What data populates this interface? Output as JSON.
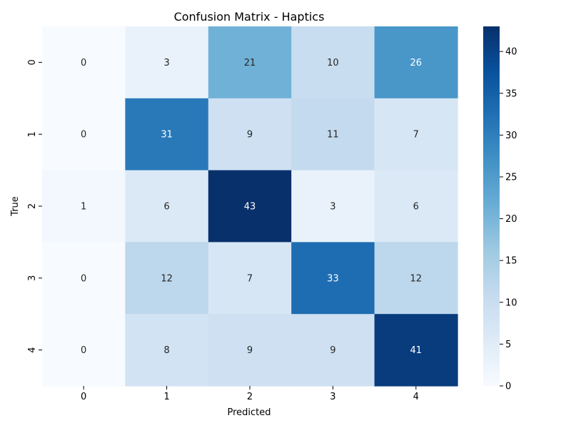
{
  "chart_data": {
    "type": "heatmap",
    "title": "Confusion Matrix - Haptics",
    "xlabel": "Predicted",
    "ylabel": "True",
    "x_categories": [
      "0",
      "1",
      "2",
      "3",
      "4"
    ],
    "y_categories": [
      "0",
      "1",
      "2",
      "3",
      "4"
    ],
    "values": [
      [
        0,
        3,
        21,
        10,
        26
      ],
      [
        0,
        31,
        9,
        11,
        7
      ],
      [
        1,
        6,
        43,
        3,
        6
      ],
      [
        0,
        12,
        7,
        33,
        12
      ],
      [
        0,
        8,
        9,
        9,
        41
      ]
    ],
    "vmin": 0,
    "vmax": 43,
    "colormap": "Blues",
    "colorbar_ticks": [
      0,
      5,
      10,
      15,
      20,
      25,
      30,
      35,
      40
    ],
    "light_text_color": "#ffffff",
    "dark_text_color": "#262626"
  }
}
